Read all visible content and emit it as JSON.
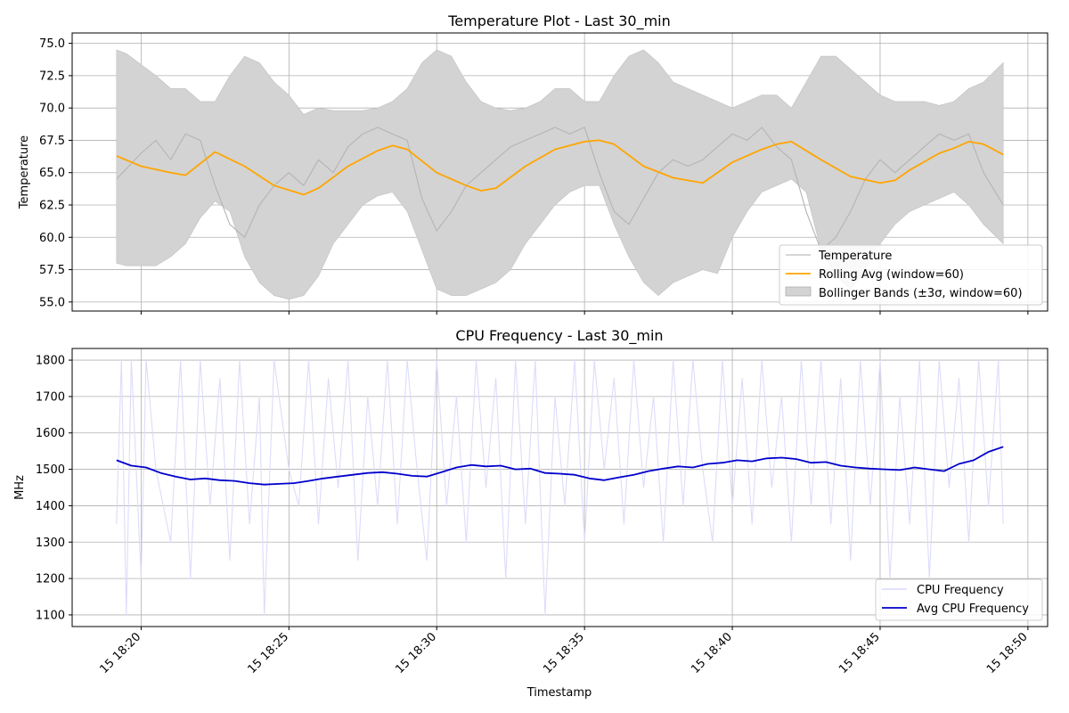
{
  "chart_data": [
    {
      "type": "line",
      "title": "Temperature Plot - Last 30_min",
      "ylabel": "Temperature",
      "xlabel": "",
      "ylim": [
        54.3,
        75.8
      ],
      "yticks": [
        55.0,
        57.5,
        60.0,
        62.5,
        65.0,
        67.5,
        70.0,
        72.5,
        75.0
      ],
      "ytick_labels": [
        "55.0",
        "57.5",
        "60.0",
        "62.5",
        "65.0",
        "67.5",
        "70.0",
        "72.5",
        "75.0"
      ],
      "grid": true,
      "legend_position": "lower-right",
      "legend": [
        {
          "label": "Temperature",
          "color": "#c8c8c8",
          "kind": "line"
        },
        {
          "label": "Rolling Avg (window=60)",
          "color": "#ffa500",
          "kind": "line"
        },
        {
          "label": "Bollinger Bands (±3σ, window=60)",
          "color": "#d3d3d3",
          "kind": "patch"
        }
      ],
      "series": [
        {
          "name": "Temperature",
          "color": "#b4b4b4",
          "x": [
            "18:19:10",
            "18:20:00",
            "18:20:30",
            "18:21:00",
            "18:21:30",
            "18:22:00",
            "18:22:30",
            "18:23:00",
            "18:23:30",
            "18:24:00",
            "18:24:30",
            "18:25:00",
            "18:25:30",
            "18:26:00",
            "18:26:30",
            "18:27:00",
            "18:27:30",
            "18:28:00",
            "18:28:30",
            "18:29:00",
            "18:29:30",
            "18:30:00",
            "18:30:30",
            "18:31:00",
            "18:31:30",
            "18:32:00",
            "18:32:30",
            "18:33:00",
            "18:33:30",
            "18:34:00",
            "18:34:30",
            "18:35:00",
            "18:35:30",
            "18:36:00",
            "18:36:30",
            "18:37:00",
            "18:37:30",
            "18:38:00",
            "18:38:30",
            "18:39:00",
            "18:39:30",
            "18:40:00",
            "18:40:30",
            "18:41:00",
            "18:41:30",
            "18:42:00",
            "18:42:30",
            "18:43:00",
            "18:43:30",
            "18:44:00",
            "18:44:30",
            "18:45:00",
            "18:45:30",
            "18:46:00",
            "18:46:30",
            "18:47:00",
            "18:47:30",
            "18:48:00",
            "18:48:30",
            "18:49:10"
          ],
          "values": [
            64.5,
            66.5,
            67.5,
            66.0,
            68.0,
            67.5,
            64.0,
            61.0,
            60.0,
            62.5,
            64.0,
            65.0,
            64.0,
            66.0,
            65.0,
            67.0,
            68.0,
            68.5,
            68.0,
            67.5,
            63.0,
            60.5,
            62.0,
            64.0,
            65.0,
            66.0,
            67.0,
            67.5,
            68.0,
            68.5,
            68.0,
            68.5,
            65.0,
            62.0,
            61.0,
            63.0,
            65.0,
            66.0,
            65.5,
            66.0,
            67.0,
            68.0,
            67.5,
            68.5,
            67.0,
            66.0,
            62.0,
            59.0,
            60.0,
            62.0,
            64.5,
            66.0,
            65.0,
            66.0,
            67.0,
            68.0,
            67.5,
            68.0,
            65.0,
            62.5
          ]
        },
        {
          "name": "Rolling Avg (window=60)",
          "color": "#ffa500",
          "x": [
            "18:19:10",
            "18:20:00",
            "18:21:00",
            "18:21:30",
            "18:22:30",
            "18:23:30",
            "18:24:30",
            "18:25:30",
            "18:26:00",
            "18:27:00",
            "18:28:00",
            "18:28:30",
            "18:29:00",
            "18:30:00",
            "18:31:00",
            "18:31:30",
            "18:32:00",
            "18:33:00",
            "18:34:00",
            "18:35:00",
            "18:35:30",
            "18:36:00",
            "18:37:00",
            "18:38:00",
            "18:38:30",
            "18:39:00",
            "18:40:00",
            "18:41:00",
            "18:41:30",
            "18:42:00",
            "18:43:00",
            "18:44:00",
            "18:45:00",
            "18:45:30",
            "18:46:00",
            "18:47:00",
            "18:47:30",
            "18:48:00",
            "18:48:30",
            "18:49:10"
          ],
          "values": [
            66.3,
            65.5,
            65.0,
            64.8,
            66.6,
            65.5,
            64.0,
            63.3,
            63.8,
            65.5,
            66.7,
            67.1,
            66.8,
            65.0,
            64.0,
            63.6,
            63.8,
            65.5,
            66.8,
            67.4,
            67.5,
            67.2,
            65.5,
            64.6,
            64.4,
            64.2,
            65.8,
            66.8,
            67.2,
            67.4,
            66.0,
            64.7,
            64.2,
            64.4,
            65.2,
            66.5,
            66.9,
            67.4,
            67.2,
            66.4
          ]
        }
      ],
      "bands": {
        "name": "Bollinger Bands (±3σ, window=60)",
        "color": "#d3d3d3",
        "x": [
          "18:19:10",
          "18:19:30",
          "18:20:30",
          "18:21:00",
          "18:21:30",
          "18:22:00",
          "18:22:30",
          "18:23:00",
          "18:23:30",
          "18:24:00",
          "18:24:30",
          "18:25:00",
          "18:25:30",
          "18:26:00",
          "18:26:30",
          "18:27:00",
          "18:27:30",
          "18:28:00",
          "18:28:30",
          "18:29:00",
          "18:29:30",
          "18:30:00",
          "18:30:30",
          "18:31:00",
          "18:31:30",
          "18:32:00",
          "18:32:30",
          "18:33:00",
          "18:33:30",
          "18:34:00",
          "18:34:30",
          "18:35:00",
          "18:35:30",
          "18:36:00",
          "18:36:30",
          "18:37:00",
          "18:37:30",
          "18:38:00",
          "18:38:30",
          "18:39:00",
          "18:39:30",
          "18:40:00",
          "18:40:30",
          "18:41:00",
          "18:41:30",
          "18:42:00",
          "18:42:30",
          "18:43:00",
          "18:43:30",
          "18:44:00",
          "18:44:30",
          "18:45:00",
          "18:45:30",
          "18:46:00",
          "18:46:30",
          "18:47:00",
          "18:47:30",
          "18:48:00",
          "18:48:30",
          "18:49:10"
        ],
        "upper": [
          74.5,
          74.2,
          72.5,
          71.5,
          71.5,
          70.5,
          70.5,
          72.5,
          74.0,
          73.5,
          72.0,
          71.0,
          69.5,
          70.0,
          69.8,
          69.8,
          69.8,
          70.0,
          70.5,
          71.5,
          73.5,
          74.5,
          74.0,
          72.0,
          70.5,
          70.0,
          69.8,
          70.0,
          70.5,
          71.5,
          71.5,
          70.5,
          70.5,
          72.5,
          74.0,
          74.5,
          73.5,
          72.0,
          71.5,
          71.0,
          70.5,
          70.0,
          70.5,
          71.0,
          71.0,
          70.0,
          72.0,
          74.0,
          74.0,
          73.0,
          72.0,
          71.0,
          70.5,
          70.5,
          70.5,
          70.2,
          70.5,
          71.5,
          72.0,
          73.5
        ],
        "lower": [
          58.0,
          57.8,
          57.8,
          58.5,
          59.5,
          61.5,
          62.8,
          62.0,
          58.5,
          56.5,
          55.5,
          55.2,
          55.5,
          57.0,
          59.5,
          61.0,
          62.5,
          63.2,
          63.5,
          62.0,
          59.0,
          56.0,
          55.5,
          55.5,
          56.0,
          56.5,
          57.5,
          59.5,
          61.0,
          62.5,
          63.5,
          64.0,
          64.0,
          61.0,
          58.5,
          56.5,
          55.5,
          56.5,
          57.0,
          57.5,
          57.2,
          60.0,
          62.0,
          63.5,
          64.0,
          64.5,
          63.5,
          59.0,
          57.0,
          56.0,
          57.5,
          59.5,
          61.0,
          62.0,
          62.5,
          63.0,
          63.5,
          62.5,
          61.0,
          59.5
        ]
      }
    },
    {
      "type": "line",
      "title": "CPU Frequency - Last 30_min",
      "ylabel": "MHz",
      "xlabel": "Timestamp",
      "ylim": [
        1068,
        1832
      ],
      "yticks": [
        1100,
        1200,
        1300,
        1400,
        1500,
        1600,
        1700,
        1800
      ],
      "ytick_labels": [
        "1100",
        "1200",
        "1300",
        "1400",
        "1500",
        "1600",
        "1700",
        "1800"
      ],
      "grid": true,
      "legend_position": "lower-right",
      "legend": [
        {
          "label": "CPU Frequency",
          "color": "#e0e0ff",
          "kind": "line"
        },
        {
          "label": "Avg CPU Frequency",
          "color": "#0000cc",
          "kind": "line"
        }
      ],
      "series": [
        {
          "name": "CPU Frequency",
          "color": "#dcdcfa",
          "x": [
            "18:19:10",
            "18:19:20",
            "18:19:30",
            "18:19:40",
            "18:20:00",
            "18:20:10",
            "18:20:30",
            "18:21:00",
            "18:21:20",
            "18:21:40",
            "18:22:00",
            "18:22:20",
            "18:22:40",
            "18:23:00",
            "18:23:20",
            "18:23:40",
            "18:24:00",
            "18:24:10",
            "18:24:30",
            "18:25:00",
            "18:25:20",
            "18:25:40",
            "18:26:00",
            "18:26:20",
            "18:26:40",
            "18:27:00",
            "18:27:20",
            "18:27:40",
            "18:28:00",
            "18:28:20",
            "18:28:40",
            "18:29:00",
            "18:29:20",
            "18:29:40",
            "18:30:00",
            "18:30:20",
            "18:30:40",
            "18:31:00",
            "18:31:20",
            "18:31:40",
            "18:32:00",
            "18:32:20",
            "18:32:40",
            "18:33:00",
            "18:33:20",
            "18:33:40",
            "18:34:00",
            "18:34:20",
            "18:34:40",
            "18:35:00",
            "18:35:20",
            "18:35:40",
            "18:36:00",
            "18:36:20",
            "18:36:40",
            "18:37:00",
            "18:37:20",
            "18:37:40",
            "18:38:00",
            "18:38:20",
            "18:38:40",
            "18:39:00",
            "18:39:20",
            "18:39:40",
            "18:40:00",
            "18:40:20",
            "18:40:40",
            "18:41:00",
            "18:41:20",
            "18:41:40",
            "18:42:00",
            "18:42:20",
            "18:42:40",
            "18:43:00",
            "18:43:20",
            "18:43:40",
            "18:44:00",
            "18:44:20",
            "18:44:40",
            "18:45:00",
            "18:45:20",
            "18:45:40",
            "18:46:00",
            "18:46:20",
            "18:46:40",
            "18:47:00",
            "18:47:20",
            "18:47:40",
            "18:48:00",
            "18:48:20",
            "18:48:40",
            "18:49:00",
            "18:49:10"
          ],
          "values": [
            1350,
            1800,
            1100,
            1800,
            1200,
            1800,
            1500,
            1300,
            1800,
            1200,
            1800,
            1400,
            1750,
            1250,
            1800,
            1350,
            1700,
            1100,
            1800,
            1500,
            1400,
            1800,
            1350,
            1750,
            1450,
            1800,
            1250,
            1700,
            1400,
            1800,
            1350,
            1800,
            1500,
            1250,
            1800,
            1400,
            1700,
            1300,
            1800,
            1450,
            1750,
            1200,
            1800,
            1350,
            1800,
            1100,
            1700,
            1400,
            1800,
            1300,
            1800,
            1500,
            1750,
            1350,
            1800,
            1450,
            1700,
            1300,
            1800,
            1400,
            1800,
            1500,
            1300,
            1800,
            1400,
            1750,
            1350,
            1800,
            1450,
            1700,
            1300,
            1800,
            1400,
            1800,
            1350,
            1750,
            1250,
            1800,
            1400,
            1800,
            1200,
            1700,
            1350,
            1800,
            1200,
            1800,
            1450,
            1750,
            1300,
            1800,
            1400,
            1800,
            1350
          ]
        },
        {
          "name": "Avg CPU Frequency",
          "color": "#0000cc",
          "x": [
            "18:19:10",
            "18:19:40",
            "18:20:10",
            "18:20:40",
            "18:21:10",
            "18:21:40",
            "18:22:10",
            "18:22:40",
            "18:23:10",
            "18:23:40",
            "18:24:10",
            "18:24:40",
            "18:25:10",
            "18:25:40",
            "18:26:10",
            "18:26:40",
            "18:27:10",
            "18:27:40",
            "18:28:10",
            "18:28:40",
            "18:29:10",
            "18:29:40",
            "18:30:10",
            "18:30:40",
            "18:31:10",
            "18:31:40",
            "18:32:10",
            "18:32:40",
            "18:33:10",
            "18:33:40",
            "18:34:10",
            "18:34:40",
            "18:35:10",
            "18:35:40",
            "18:36:10",
            "18:36:40",
            "18:37:10",
            "18:37:40",
            "18:38:10",
            "18:38:40",
            "18:39:10",
            "18:39:40",
            "18:40:10",
            "18:40:40",
            "18:41:10",
            "18:41:40",
            "18:42:10",
            "18:42:40",
            "18:43:10",
            "18:43:40",
            "18:44:10",
            "18:44:40",
            "18:45:10",
            "18:45:40",
            "18:46:10",
            "18:46:40",
            "18:47:10",
            "18:47:40",
            "18:48:10",
            "18:48:40",
            "18:49:10"
          ],
          "values": [
            1525,
            1510,
            1505,
            1490,
            1480,
            1472,
            1475,
            1470,
            1468,
            1462,
            1458,
            1460,
            1462,
            1468,
            1475,
            1480,
            1485,
            1490,
            1492,
            1488,
            1482,
            1480,
            1492,
            1505,
            1512,
            1508,
            1510,
            1500,
            1502,
            1490,
            1488,
            1485,
            1475,
            1470,
            1478,
            1485,
            1495,
            1502,
            1508,
            1505,
            1515,
            1518,
            1525,
            1522,
            1530,
            1532,
            1528,
            1518,
            1520,
            1510,
            1505,
            1502,
            1500,
            1498,
            1505,
            1500,
            1495,
            1515,
            1525,
            1548,
            1562
          ]
        }
      ]
    }
  ],
  "axes": {
    "x_ticks": [
      "18:20",
      "18:25",
      "18:30",
      "18:35",
      "18:40",
      "18:45",
      "18:50"
    ],
    "x_tick_labels": [
      "15 18:20",
      "15 18:25",
      "15 18:30",
      "15 18:35",
      "15 18:40",
      "15 18:45",
      "15 18:50"
    ]
  }
}
